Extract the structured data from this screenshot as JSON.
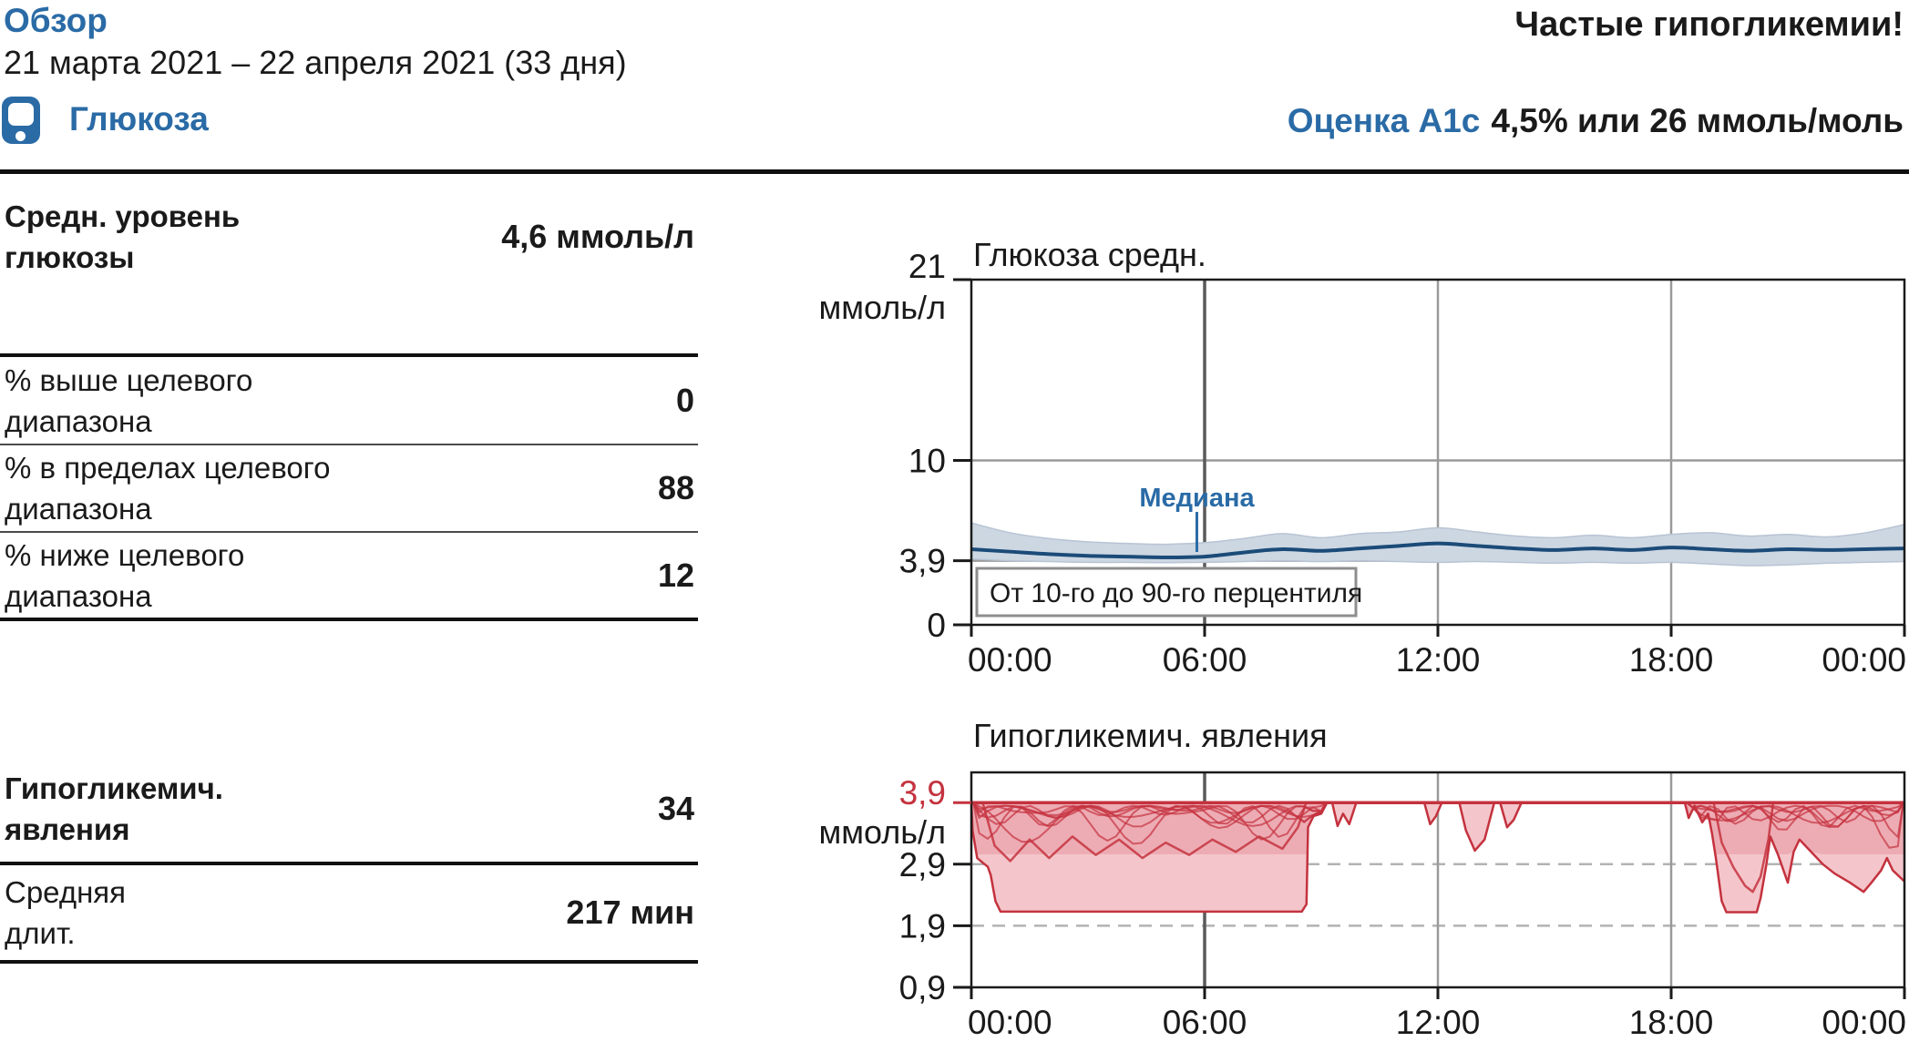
{
  "header": {
    "title": "Обзор",
    "date_range": "21 марта 2021 – 22 апреля 2021 (33 дня)",
    "alert": "Частые гипогликемии!",
    "section_label": "Глюкоза",
    "a1c_label": "Оценка A1c",
    "a1c_value": "4,5% или 26 ммоль/моль"
  },
  "colors": {
    "accent_blue": "#2a6ba6",
    "median_blue": "#1b4b78",
    "band_fill": "#cdd7e2",
    "band_edge": "#b7c4d3",
    "alert_red": "#c4323e",
    "event_fill": "#f4c6cb",
    "event_fill_dark": "#eca9b1",
    "grid": "#9a9a9a",
    "grid_dark": "#5a5a5a",
    "grid_dashed": "#b3b3b3",
    "ink": "#1a1a1a",
    "frame": "#1a1a1a"
  },
  "stats": {
    "glucose_table": {
      "rows": [
        {
          "label": "Средн. уровень глюкозы",
          "label_lines": [
            "Средн. уровень",
            "глюкозы"
          ],
          "value": "4,6 ммоль/л",
          "emphasis": true
        },
        {
          "label": "% выше целевого диапазона",
          "label_lines": [
            "% выше целевого",
            "диапазона"
          ],
          "value": "0",
          "emphasis": false
        },
        {
          "label": "% в пределах целевого диапазона",
          "label_lines": [
            "% в пределах целевого",
            "диапазона"
          ],
          "value": "88",
          "emphasis": false
        },
        {
          "label": "% ниже целевого диапазона",
          "label_lines": [
            "% ниже целевого",
            "диапазона"
          ],
          "value": "12",
          "emphasis": false
        }
      ]
    },
    "hypo_table": {
      "rows": [
        {
          "label": "Гипогликемич. явления",
          "label_lines": [
            "Гипогликемич.",
            "явления"
          ],
          "value": "34",
          "emphasis": true
        },
        {
          "label": "Средняя длит.",
          "label_lines": [
            "Средняя",
            "длит."
          ],
          "value": "217 мин",
          "emphasis": false
        }
      ]
    }
  },
  "chart_data": [
    {
      "type": "line",
      "title": "Глюкоза средн.",
      "ylabel": "ммоль/л",
      "xlabel": "",
      "xlim_hours": [
        0,
        24
      ],
      "ylim": [
        0,
        21
      ],
      "grid": {
        "h_values": [
          10,
          3.9
        ],
        "v_hours": [
          6,
          12,
          18
        ],
        "emphasized_hour": 6
      },
      "x_ticks": [
        {
          "h": 0,
          "label": "00:00"
        },
        {
          "h": 6,
          "label": "06:00"
        },
        {
          "h": 12,
          "label": "12:00"
        },
        {
          "h": 18,
          "label": "18:00"
        },
        {
          "h": 24,
          "label": "00:00"
        }
      ],
      "y_ticks": [
        {
          "v": 21,
          "label": "21"
        },
        {
          "v": 10,
          "label": "10"
        },
        {
          "v": 3.9,
          "label": "3,9"
        },
        {
          "v": 0,
          "label": "0"
        }
      ],
      "x_interval_hours": 1,
      "series": [
        {
          "name": "median",
          "values": [
            4.6,
            4.45,
            4.3,
            4.2,
            4.15,
            4.1,
            4.15,
            4.4,
            4.6,
            4.5,
            4.65,
            4.8,
            4.95,
            4.8,
            4.65,
            4.55,
            4.65,
            4.55,
            4.7,
            4.6,
            4.5,
            4.6,
            4.55,
            4.6,
            4.65
          ]
        },
        {
          "name": "p90",
          "values": [
            6.2,
            5.6,
            5.25,
            5.05,
            4.95,
            4.9,
            5.0,
            5.25,
            5.55,
            5.3,
            5.55,
            5.65,
            5.9,
            5.65,
            5.4,
            5.3,
            5.45,
            5.3,
            5.5,
            5.6,
            5.4,
            5.5,
            5.35,
            5.6,
            6.1
          ]
        },
        {
          "name": "p10",
          "values": [
            4.0,
            3.9,
            3.85,
            3.8,
            3.8,
            3.78,
            3.8,
            3.85,
            3.9,
            3.85,
            3.9,
            3.85,
            3.8,
            3.85,
            3.8,
            3.75,
            3.8,
            3.75,
            3.8,
            3.7,
            3.6,
            3.65,
            3.75,
            3.8,
            3.85
          ]
        }
      ],
      "annotations": {
        "median_label": "Медиана",
        "median_label_hour": 5.8,
        "band_box_label": "От 10-го до 90-го перцентиля"
      },
      "legend_position": "inside"
    },
    {
      "type": "area",
      "title": "Гипогликемич. явления",
      "ylabel": "ммоль/л",
      "xlabel": "",
      "xlim_hours": [
        0,
        24
      ],
      "ylim": [
        0.9,
        4.39
      ],
      "threshold": 3.9,
      "grid": {
        "dashed_values": [
          2.9,
          1.9
        ],
        "v_hours": [
          6,
          12,
          18
        ],
        "emphasized_hour": 6
      },
      "x_ticks": [
        {
          "h": 0,
          "label": "00:00"
        },
        {
          "h": 6,
          "label": "06:00"
        },
        {
          "h": 12,
          "label": "12:00"
        },
        {
          "h": 18,
          "label": "18:00"
        },
        {
          "h": 24,
          "label": "00:00"
        }
      ],
      "y_ticks": [
        {
          "v": 3.9,
          "label": "3,9",
          "red": true
        },
        {
          "v": 2.9,
          "label": "2,9"
        },
        {
          "v": 1.9,
          "label": "1,9"
        },
        {
          "v": 0.9,
          "label": "0,9"
        }
      ],
      "events": [
        [
          [
            0,
            3.9
          ],
          [
            0.03,
            3.45
          ],
          [
            0.15,
            3.0
          ],
          [
            0.3,
            2.92
          ],
          [
            0.42,
            2.86
          ],
          [
            0.5,
            2.72
          ],
          [
            0.62,
            2.3
          ],
          [
            0.75,
            2.13
          ],
          [
            8.5,
            2.13
          ],
          [
            8.62,
            2.25
          ],
          [
            8.66,
            3.5
          ],
          [
            8.8,
            3.68
          ],
          [
            9.0,
            3.72
          ],
          [
            9.15,
            3.9
          ]
        ],
        [
          [
            9.28,
            3.9
          ],
          [
            9.42,
            3.52
          ],
          [
            9.56,
            3.72
          ],
          [
            9.72,
            3.55
          ],
          [
            9.9,
            3.9
          ]
        ],
        [
          [
            11.65,
            3.9
          ],
          [
            11.8,
            3.55
          ],
          [
            11.95,
            3.68
          ],
          [
            12.1,
            3.9
          ]
        ],
        [
          [
            12.55,
            3.9
          ],
          [
            12.72,
            3.45
          ],
          [
            12.95,
            3.12
          ],
          [
            13.2,
            3.3
          ],
          [
            13.45,
            3.9
          ]
        ],
        [
          [
            13.6,
            3.9
          ],
          [
            13.78,
            3.5
          ],
          [
            13.95,
            3.62
          ],
          [
            14.15,
            3.9
          ]
        ],
        [
          [
            18.35,
            3.9
          ],
          [
            18.45,
            3.65
          ],
          [
            18.6,
            3.85
          ],
          [
            18.8,
            3.58
          ],
          [
            18.95,
            3.72
          ],
          [
            19.05,
            3.4
          ],
          [
            19.15,
            3.0
          ],
          [
            19.3,
            2.3
          ],
          [
            19.42,
            2.12
          ],
          [
            20.2,
            2.12
          ],
          [
            20.3,
            2.35
          ],
          [
            20.45,
            2.9
          ],
          [
            20.55,
            3.35
          ],
          [
            20.75,
            3.05
          ],
          [
            21.0,
            2.6
          ],
          [
            21.15,
            3.1
          ],
          [
            21.3,
            3.3
          ],
          [
            21.6,
            3.1
          ],
          [
            21.9,
            2.9
          ],
          [
            22.2,
            2.75
          ],
          [
            22.6,
            2.6
          ],
          [
            22.95,
            2.45
          ],
          [
            23.15,
            2.6
          ],
          [
            23.4,
            2.8
          ],
          [
            23.55,
            3.0
          ],
          [
            23.7,
            2.8
          ],
          [
            24,
            2.62
          ]
        ]
      ],
      "inner_traces": [
        [
          [
            0.3,
            3.88
          ],
          [
            0.6,
            3.2
          ],
          [
            1.0,
            2.95
          ],
          [
            1.5,
            3.3
          ],
          [
            2.0,
            3.0
          ],
          [
            2.6,
            3.35
          ],
          [
            3.2,
            3.05
          ],
          [
            3.8,
            3.3
          ],
          [
            4.4,
            3.0
          ],
          [
            5.0,
            3.25
          ],
          [
            5.6,
            3.05
          ],
          [
            6.2,
            3.3
          ],
          [
            6.8,
            3.1
          ],
          [
            7.4,
            3.35
          ],
          [
            8.0,
            3.15
          ],
          [
            8.4,
            3.5
          ],
          [
            8.6,
            3.88
          ]
        ],
        [
          [
            19.1,
            3.88
          ],
          [
            19.3,
            3.25
          ],
          [
            19.6,
            2.85
          ],
          [
            19.9,
            2.55
          ],
          [
            20.1,
            2.45
          ],
          [
            20.3,
            2.7
          ],
          [
            20.5,
            3.3
          ],
          [
            20.62,
            3.88
          ]
        ]
      ]
    }
  ]
}
